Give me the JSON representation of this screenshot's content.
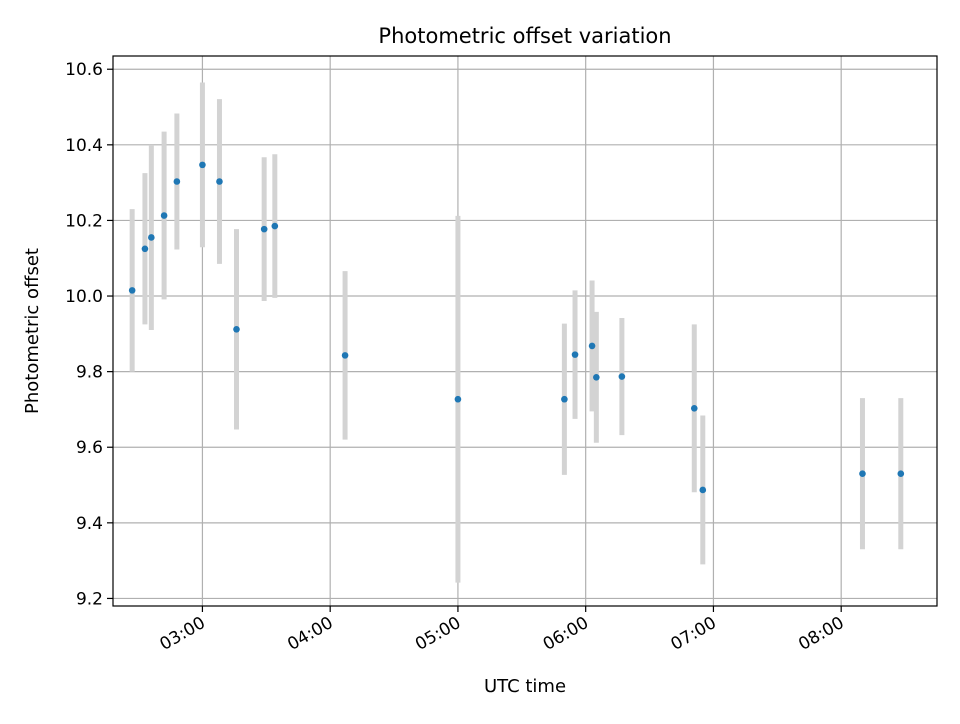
{
  "chart_data": {
    "type": "scatter",
    "title": "Photometric offset variation",
    "xlabel": "UTC time",
    "ylabel": "Photometric offset",
    "x_unit": "UTC time (HH:MM)",
    "xlim": [
      "02:18",
      "08:45"
    ],
    "ylim": [
      9.18,
      10.635
    ],
    "x_ticks": [
      "03:00",
      "04:00",
      "05:00",
      "06:00",
      "07:00",
      "08:00"
    ],
    "y_ticks": [
      "9.2",
      "9.4",
      "9.6",
      "9.8",
      "10.0",
      "10.2",
      "10.4",
      "10.6"
    ],
    "grid": true,
    "colors": {
      "point": "#1f77b4",
      "errorbar": "#d3d3d3",
      "grid": "#b0b0b0"
    },
    "series": [
      {
        "points": [
          {
            "x": "02:27",
            "y": 10.015,
            "err": 0.215
          },
          {
            "x": "02:33",
            "y": 10.125,
            "err": 0.2
          },
          {
            "x": "02:36",
            "y": 10.155,
            "err": 0.245
          },
          {
            "x": "02:42",
            "y": 10.213,
            "err": 0.222
          },
          {
            "x": "02:48",
            "y": 10.303,
            "err": 0.18
          },
          {
            "x": "03:00",
            "y": 10.347,
            "err": 0.218
          },
          {
            "x": "03:08",
            "y": 10.303,
            "err": 0.218
          },
          {
            "x": "03:16",
            "y": 9.912,
            "err": 0.265
          },
          {
            "x": "03:29",
            "y": 10.177,
            "err": 0.19
          },
          {
            "x": "03:34",
            "y": 10.185,
            "err": 0.19
          },
          {
            "x": "04:07",
            "y": 9.843,
            "err": 0.223
          },
          {
            "x": "05:00",
            "y": 9.727,
            "err": 0.485
          },
          {
            "x": "05:50",
            "y": 9.727,
            "err": 0.2
          },
          {
            "x": "05:55",
            "y": 9.845,
            "err": 0.17
          },
          {
            "x": "06:03",
            "y": 9.868,
            "err": 0.173
          },
          {
            "x": "06:05",
            "y": 9.785,
            "err": 0.173
          },
          {
            "x": "06:17",
            "y": 9.787,
            "err": 0.155
          },
          {
            "x": "06:51",
            "y": 9.703,
            "err": 0.222
          },
          {
            "x": "06:55",
            "y": 9.487,
            "err": 0.197
          },
          {
            "x": "08:10",
            "y": 9.53,
            "err": 0.2
          },
          {
            "x": "08:28",
            "y": 9.53,
            "err": 0.2
          }
        ]
      }
    ]
  }
}
